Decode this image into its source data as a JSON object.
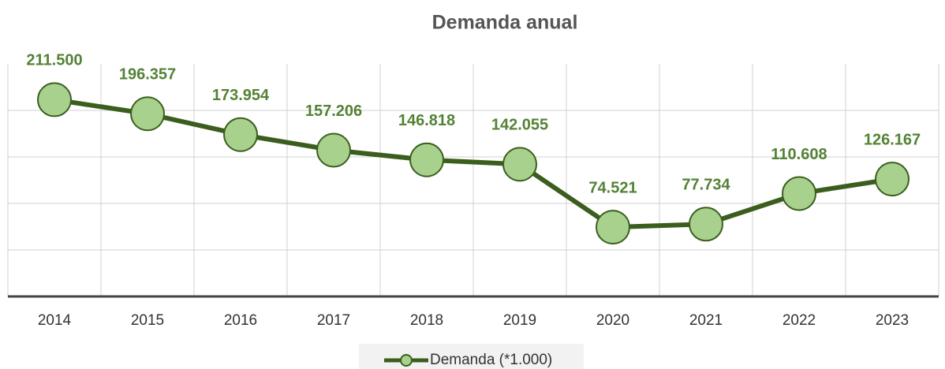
{
  "chart_data": {
    "type": "line",
    "title": "Demanda anual",
    "categories": [
      "2014",
      "2015",
      "2016",
      "2017",
      "2018",
      "2019",
      "2020",
      "2021",
      "2022",
      "2023"
    ],
    "series": [
      {
        "name": "Demanda (*1.000)",
        "color": "#3b5e1e",
        "marker_color": "#a9d18e",
        "label_color": "#548235",
        "values": [
          211500,
          196357,
          173954,
          157206,
          146818,
          142055,
          74521,
          77734,
          110608,
          126167
        ],
        "value_labels": [
          "211.500",
          "196.357",
          "173.954",
          "157.206",
          "146.818",
          "142.055",
          "74.521",
          "77.734",
          "110.608",
          "126.167"
        ]
      }
    ],
    "ylim": [
      0,
      250000
    ],
    "yticks": [
      0,
      50000,
      100000,
      150000,
      200000
    ],
    "grid": true,
    "legend": "bottom"
  }
}
